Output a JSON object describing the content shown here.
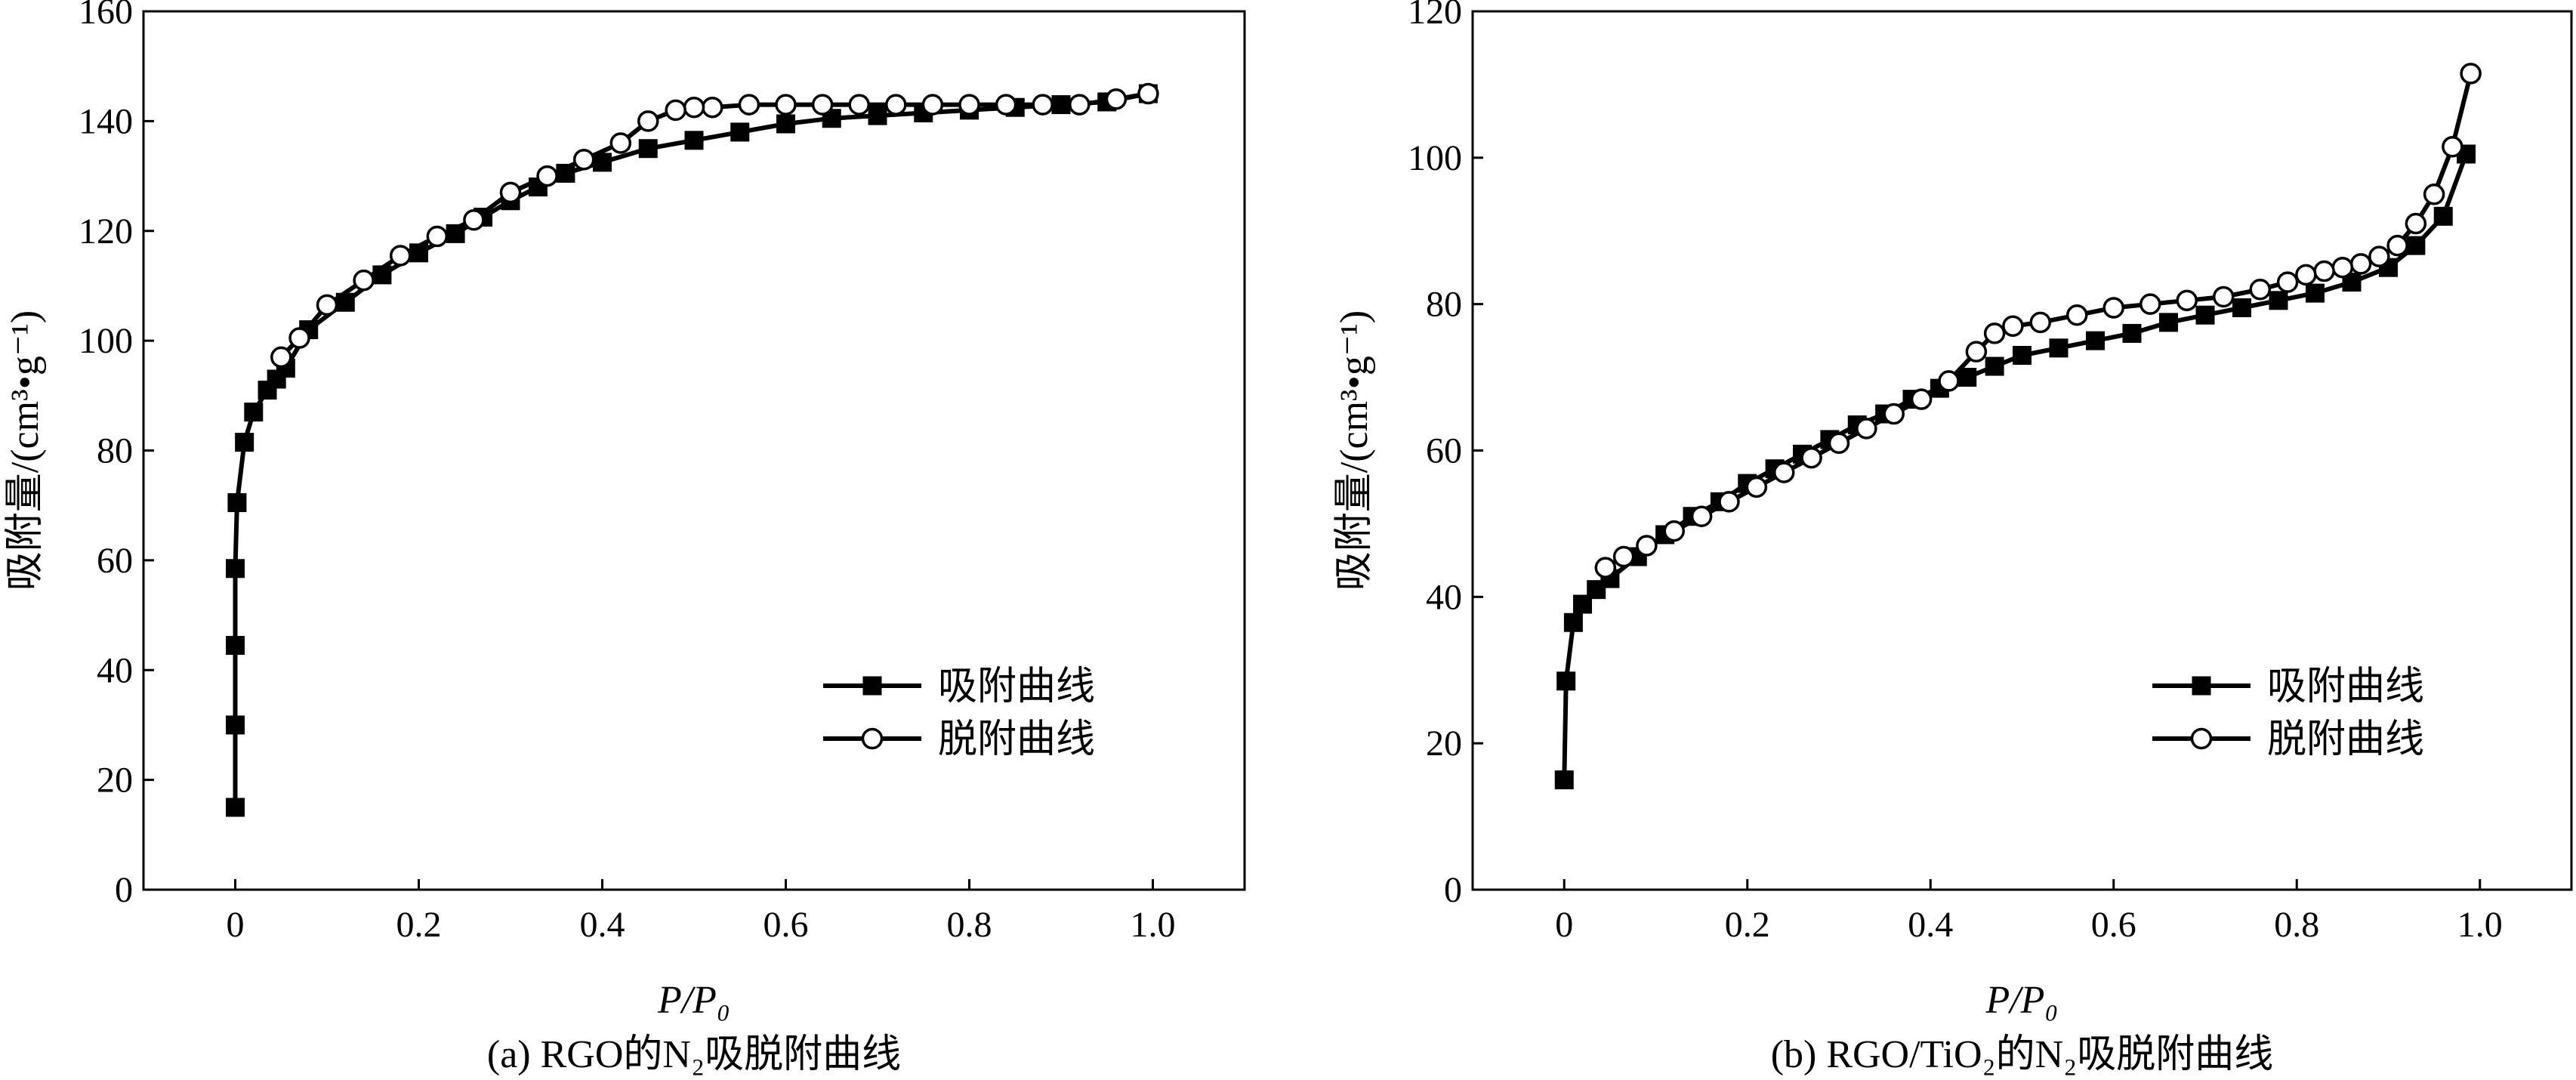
{
  "chart_data": [
    {
      "type": "line",
      "caption": "(a) RGO的N₂吸脱附曲线",
      "xlabel": "P/P₀",
      "ylabel": "吸附量/(cm³•g⁻¹)",
      "xlim": [
        -0.1,
        1.1
      ],
      "ylim": [
        0,
        160
      ],
      "xticks": [
        0,
        0.2,
        0.4,
        0.6,
        0.8,
        1.0
      ],
      "xtick_labels": [
        "0",
        "0.2",
        "0.4",
        "0.6",
        "0.8",
        "1.0"
      ],
      "yticks": [
        0,
        20,
        40,
        60,
        80,
        100,
        120,
        140,
        160
      ],
      "ytick_labels": [
        "0",
        "20",
        "40",
        "60",
        "80",
        "100",
        "120",
        "140",
        "160"
      ],
      "legend_position": "lower-right",
      "series": [
        {
          "name": "吸附曲线",
          "marker": "filled-square",
          "x": [
            0.0,
            0.0,
            0.0,
            0.0,
            0.002,
            0.01,
            0.02,
            0.035,
            0.045,
            0.055,
            0.08,
            0.12,
            0.16,
            0.2,
            0.24,
            0.27,
            0.3,
            0.33,
            0.36,
            0.4,
            0.45,
            0.5,
            0.55,
            0.6,
            0.65,
            0.7,
            0.75,
            0.8,
            0.85,
            0.9,
            0.95,
            0.995
          ],
          "y": [
            15,
            30,
            44.5,
            58.5,
            70.5,
            81.5,
            87,
            91,
            93,
            95,
            102,
            107,
            112,
            116,
            119.5,
            122.5,
            125.5,
            128,
            130.5,
            132.5,
            135,
            136.5,
            138,
            139.5,
            140.5,
            141,
            141.5,
            142,
            142.5,
            143,
            143.5,
            145
          ]
        },
        {
          "name": "脱附曲线",
          "marker": "open-circle",
          "x": [
            0.995,
            0.96,
            0.92,
            0.88,
            0.84,
            0.8,
            0.76,
            0.72,
            0.68,
            0.64,
            0.6,
            0.56,
            0.52,
            0.5,
            0.48,
            0.45,
            0.42,
            0.38,
            0.34,
            0.3,
            0.26,
            0.22,
            0.18,
            0.14,
            0.1,
            0.07,
            0.05
          ],
          "y": [
            145,
            144,
            143,
            143,
            143,
            143,
            143,
            143,
            143,
            143,
            143,
            143,
            142.5,
            142.5,
            142,
            140,
            136,
            133,
            130,
            127,
            122,
            119,
            115.5,
            111,
            106.5,
            100.5,
            97
          ]
        }
      ]
    },
    {
      "type": "line",
      "caption": "(b) RGO/TiO₂的N₂吸脱附曲线",
      "xlabel": "P/P₀",
      "ylabel": "吸附量/(cm³•g⁻¹)",
      "xlim": [
        -0.1,
        1.1
      ],
      "ylim": [
        0,
        120
      ],
      "xticks": [
        0,
        0.2,
        0.4,
        0.6,
        0.8,
        1.0
      ],
      "xtick_labels": [
        "0",
        "0.2",
        "0.4",
        "0.6",
        "0.8",
        "1.0"
      ],
      "yticks": [
        0,
        20,
        40,
        60,
        80,
        100,
        120
      ],
      "ytick_labels": [
        "0",
        "20",
        "40",
        "60",
        "80",
        "100",
        "120"
      ],
      "legend_position": "lower-right",
      "series": [
        {
          "name": "吸附曲线",
          "marker": "filled-square",
          "x": [
            0.0,
            0.002,
            0.01,
            0.02,
            0.035,
            0.05,
            0.08,
            0.11,
            0.14,
            0.17,
            0.2,
            0.23,
            0.26,
            0.29,
            0.32,
            0.35,
            0.38,
            0.41,
            0.44,
            0.47,
            0.5,
            0.54,
            0.58,
            0.62,
            0.66,
            0.7,
            0.74,
            0.78,
            0.82,
            0.86,
            0.9,
            0.93,
            0.96,
            0.985
          ],
          "y": [
            15,
            28.5,
            36.5,
            39,
            41,
            42.5,
            45.5,
            48.5,
            51,
            53,
            55.5,
            57.5,
            59.5,
            61.5,
            63.5,
            65,
            67,
            68.5,
            70,
            71.5,
            73,
            74,
            75,
            76,
            77.5,
            78.5,
            79.5,
            80.5,
            81.5,
            83,
            85,
            88,
            92,
            100.5
          ]
        },
        {
          "name": "脱附曲线",
          "marker": "open-circle",
          "x": [
            0.99,
            0.97,
            0.95,
            0.93,
            0.91,
            0.89,
            0.87,
            0.85,
            0.83,
            0.81,
            0.79,
            0.76,
            0.72,
            0.68,
            0.64,
            0.6,
            0.56,
            0.52,
            0.49,
            0.47,
            0.45,
            0.42,
            0.39,
            0.36,
            0.33,
            0.3,
            0.27,
            0.24,
            0.21,
            0.18,
            0.15,
            0.12,
            0.09,
            0.065,
            0.045
          ],
          "y": [
            111.5,
            101.5,
            95,
            91,
            88,
            86.5,
            85.5,
            85,
            84.5,
            84,
            83,
            82,
            81,
            80.5,
            80,
            79.5,
            78.5,
            77.5,
            77,
            76,
            73.5,
            69.5,
            67,
            65,
            63,
            61,
            59,
            57,
            55,
            53,
            51,
            49,
            47,
            45.5,
            44
          ]
        }
      ]
    }
  ]
}
